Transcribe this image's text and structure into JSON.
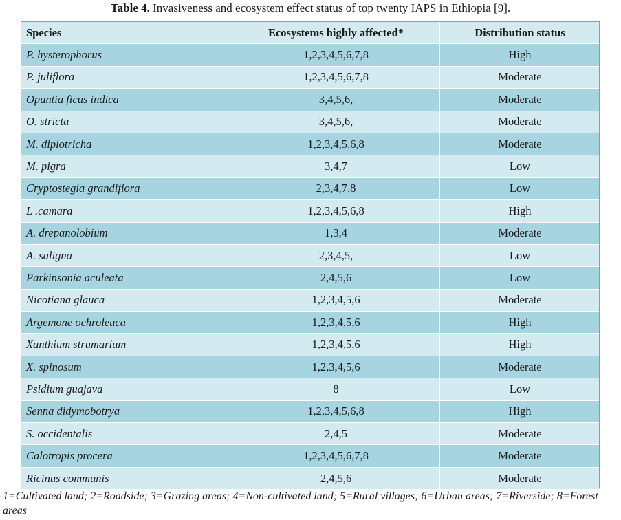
{
  "caption": {
    "label": "Table 4.",
    "text": " Invasiveness and ecosystem effect status of top twenty IAPS in Ethiopia [9]."
  },
  "table": {
    "headers": [
      "Species",
      "Ecosystems highly affected*",
      "Distribution status"
    ],
    "rows": [
      {
        "species": "P. hysterophorus",
        "ecosystems": "1,2,3,4,5,6,7,8",
        "status": "High"
      },
      {
        "species": "P. juliflora",
        "ecosystems": "1,2,3,4,5,6,7,8",
        "status": "Moderate"
      },
      {
        "species": "Opuntia ficus indica",
        "ecosystems": "3,4,5,6,",
        "status": "Moderate"
      },
      {
        "species": "O. stricta",
        "ecosystems": "3,4,5,6,",
        "status": "Moderate"
      },
      {
        "species": "M. diplotricha",
        "ecosystems": "1,2,3,4,5,6,8",
        "status": "Moderate"
      },
      {
        "species": "M. pigra",
        "ecosystems": "3,4,7",
        "status": "Low"
      },
      {
        "species": "Cryptostegia grandiflora",
        "ecosystems": "2,3,4,7,8",
        "status": "Low"
      },
      {
        "species": "L .camara",
        "ecosystems": "1,2,3,4,5,6,8",
        "status": "High"
      },
      {
        "species": "A. drepanolobium",
        "ecosystems": "1,3,4",
        "status": "Moderate"
      },
      {
        "species": "A. saligna",
        "ecosystems": "2,3,4,5,",
        "status": "Low"
      },
      {
        "species": "Parkinsonia aculeata",
        "ecosystems": "2,4,5,6",
        "status": "Low"
      },
      {
        "species": "Nicotiana glauca",
        "ecosystems": "1,2,3,4,5,6",
        "status": "Moderate"
      },
      {
        "species": "Argemone ochroleuca",
        "ecosystems": "1,2,3,4,5,6",
        "status": "High"
      },
      {
        "species": "Xanthium strumarium",
        "ecosystems": "1,2,3,4,5,6",
        "status": "High"
      },
      {
        "species": "X. spinosum",
        "ecosystems": "1,2,3,4,5,6",
        "status": "Moderate"
      },
      {
        "species": "Psidium guajava",
        "ecosystems": "8",
        "status": "Low"
      },
      {
        "species": "Senna didymobotrya",
        "ecosystems": "1,2,3,4,5,6,8",
        "status": "High"
      },
      {
        "species": "S. occidentalis",
        "ecosystems": "2,4,5",
        "status": "Moderate"
      },
      {
        "species": "Calotropis procera",
        "ecosystems": "1,2,3,4,5,6,7,8",
        "status": "Moderate"
      },
      {
        "species": "Ricinus communis",
        "ecosystems": "2,4,5,6",
        "status": "Moderate"
      }
    ]
  },
  "footnote": "1=Cultivated land; 2=Roadside; 3=Grazing areas; 4=Non-cultivated land; 5=Rural villages; 6=Urban areas; 7=Riverside; 8=Forest areas",
  "colors": {
    "row_dark": "#a6d5e1",
    "row_light": "#d3eaf1"
  }
}
